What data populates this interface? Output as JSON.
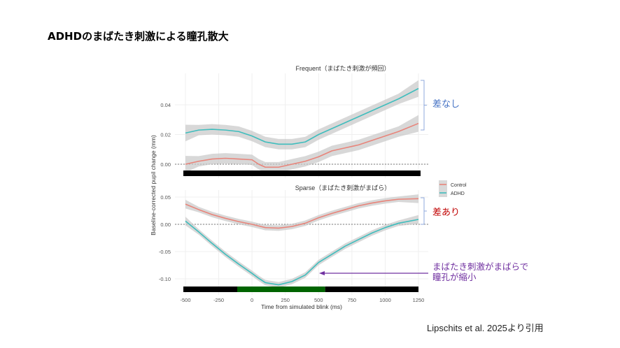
{
  "slide": {
    "title": "ADHDのまばたき刺激による瞳孔散大",
    "citation": "Lipschits et al. 2025より引用",
    "annotations": {
      "no_difference": "差なし",
      "difference": "差あり",
      "note_line1": "まばたき刺激がまばらで",
      "note_line2": "瞳孔が縮小"
    },
    "colors": {
      "no_difference": "#4472c4",
      "difference": "#c00000",
      "note": "#7030a0"
    }
  },
  "chart_data": {
    "type": "line",
    "xlabel": "Time from simulated blink (ms)",
    "ylabel": "Baseline-corrected pupil change (mm)",
    "xlim": [
      -500,
      1250
    ],
    "x_ticks": [
      "-500",
      "-250",
      "0",
      "250",
      "500",
      "750",
      "1000",
      "1250"
    ],
    "legend": {
      "placement": "right",
      "entries": [
        "Control",
        "ADHD"
      ]
    },
    "series_colors": {
      "Control": "#e8847a",
      "ADHD": "#3fbdbd"
    },
    "grid": true,
    "panels": [
      {
        "title": "Frequent（まばたき刺激が頻回）",
        "ylim": [
          -0.005,
          0.056
        ],
        "y_ticks": [
          "0.00",
          "0.02",
          "0.04"
        ],
        "reference_line": 0,
        "stimulus_bar": [
          {
            "from": -500,
            "to": 1250,
            "color": "#000000"
          }
        ],
        "x": [
          -500,
          -400,
          -300,
          -200,
          -100,
          0,
          50,
          100,
          200,
          300,
          400,
          500,
          600,
          700,
          800,
          900,
          1000,
          1100,
          1250
        ],
        "series": [
          {
            "name": "Control",
            "values": [
              0.0,
              0.002,
              0.0035,
              0.004,
              0.0035,
              0.003,
              0.0,
              -0.002,
              -0.002,
              0.0,
              0.002,
              0.005,
              0.009,
              0.011,
              0.013,
              0.016,
              0.019,
              0.022,
              0.0275
            ]
          },
          {
            "name": "ADHD",
            "values": [
              0.021,
              0.023,
              0.0235,
              0.023,
              0.022,
              0.019,
              0.017,
              0.015,
              0.0135,
              0.0135,
              0.015,
              0.02,
              0.024,
              0.028,
              0.032,
              0.036,
              0.04,
              0.044,
              0.051
            ]
          }
        ]
      },
      {
        "title": "Sparse（まばたき刺激がまばら）",
        "ylim": [
          -0.115,
          0.06
        ],
        "y_ticks": [
          "0.05",
          "0.00",
          "-0.05",
          "-0.10"
        ],
        "reference_line": 0,
        "stimulus_bar": [
          {
            "from": -500,
            "to": -95,
            "color": "#000000"
          },
          {
            "from": -95,
            "to": 565,
            "color": "#006400"
          },
          {
            "from": 565,
            "to": 1250,
            "color": "#000000"
          }
        ],
        "x": [
          -500,
          -400,
          -300,
          -200,
          -100,
          0,
          50,
          100,
          200,
          300,
          400,
          500,
          600,
          700,
          800,
          900,
          1000,
          1100,
          1250
        ],
        "series": [
          {
            "name": "Control",
            "values": [
              0.037,
              0.027,
              0.018,
              0.011,
              0.005,
              0.0,
              -0.003,
              -0.006,
              -0.007,
              -0.004,
              0.002,
              0.012,
              0.02,
              0.027,
              0.034,
              0.039,
              0.043,
              0.046,
              0.047
            ]
          },
          {
            "name": "ADHD",
            "values": [
              0.006,
              -0.014,
              -0.035,
              -0.055,
              -0.073,
              -0.09,
              -0.099,
              -0.107,
              -0.111,
              -0.105,
              -0.093,
              -0.07,
              -0.055,
              -0.04,
              -0.028,
              -0.016,
              -0.006,
              0.002,
              0.009
            ]
          }
        ]
      }
    ]
  }
}
